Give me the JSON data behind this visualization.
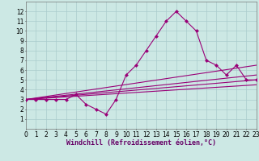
{
  "bg_color": "#cce8e4",
  "line_color": "#990077",
  "grid_color": "#aacccc",
  "xlabel": "Windchill (Refroidissement éolien,°C)",
  "ylim": [
    0,
    13
  ],
  "xlim": [
    0,
    23
  ],
  "yticks": [
    1,
    2,
    3,
    4,
    5,
    6,
    7,
    8,
    9,
    10,
    11,
    12
  ],
  "xticks": [
    0,
    1,
    2,
    3,
    4,
    5,
    6,
    7,
    8,
    9,
    10,
    11,
    12,
    13,
    14,
    15,
    16,
    17,
    18,
    19,
    20,
    21,
    22,
    23
  ],
  "main_x": [
    0,
    1,
    2,
    3,
    4,
    5,
    6,
    7,
    8,
    9,
    10,
    11,
    12,
    13,
    14,
    15,
    16,
    17,
    18,
    19,
    20,
    21,
    22,
    23
  ],
  "main_y": [
    3,
    3,
    3,
    3,
    3,
    3.5,
    2.5,
    2,
    1.5,
    3,
    5.5,
    6.5,
    8,
    9.5,
    11,
    12,
    11,
    10,
    7,
    6.5,
    5.5,
    6.5,
    5,
    5
  ],
  "line2_x": [
    0,
    23
  ],
  "line2_y": [
    3,
    6.5
  ],
  "line3_x": [
    0,
    23
  ],
  "line3_y": [
    3,
    5.5
  ],
  "line4_x": [
    0,
    23
  ],
  "line4_y": [
    3,
    5.0
  ],
  "line5_x": [
    0,
    23
  ],
  "line5_y": [
    3,
    4.5
  ],
  "marker_size": 2.5,
  "linewidth": 0.8,
  "xlabel_fontsize": 6.0,
  "tick_fontsize": 5.5
}
